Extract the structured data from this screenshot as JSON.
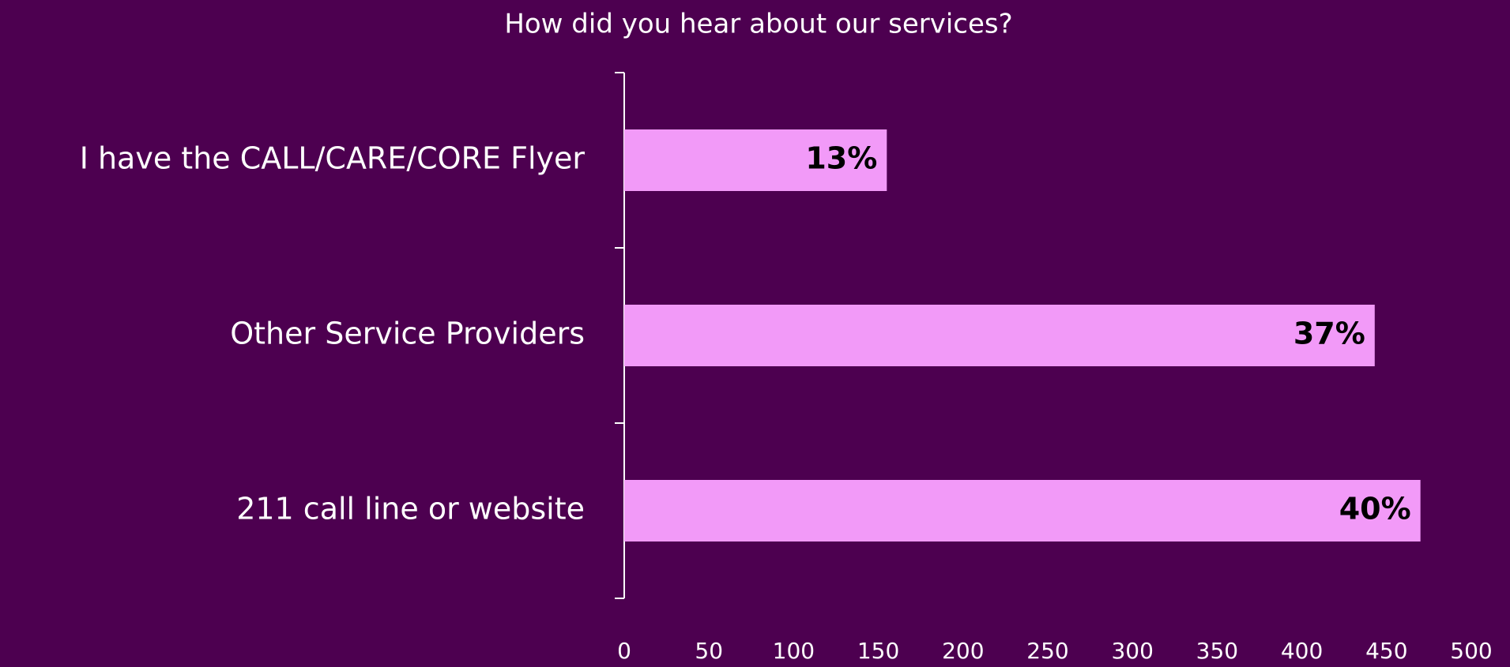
{
  "chart_data": {
    "type": "bar",
    "orientation": "horizontal",
    "title": "How did you hear about our services?",
    "categories": [
      "I have the CALL/CARE/CORE Flyer",
      "Other Service Providers",
      "211 call line or website"
    ],
    "values": [
      155,
      443,
      470
    ],
    "data_labels": [
      "13%",
      "37%",
      "40%"
    ],
    "color": "#f29af8",
    "xlim": [
      0,
      500
    ],
    "xticks": [
      0,
      50,
      100,
      150,
      200,
      250,
      300,
      350,
      400,
      450,
      500
    ],
    "grid": false
  }
}
